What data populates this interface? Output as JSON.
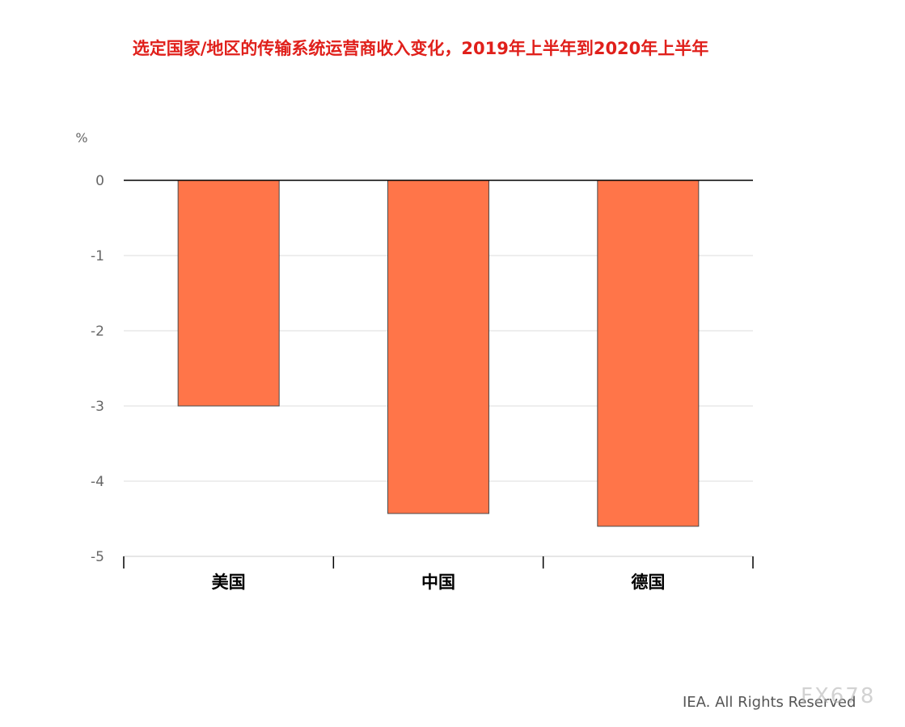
{
  "chart_data": {
    "type": "bar",
    "title": "选定国家/地区的传输系统运营商收入变化，2019年上半年到2020年上半年",
    "ylabel": "%",
    "xlabel": "",
    "categories": [
      "美国",
      "中国",
      "德国"
    ],
    "values": [
      -3.0,
      -4.43,
      -4.6
    ],
    "ylim": [
      -5,
      0
    ],
    "yticks": [
      0,
      -1,
      -2,
      -3,
      -4,
      -5
    ],
    "grid": true,
    "legend": "none",
    "colors": {
      "bar": "#ff7549",
      "bar_stroke": "#4a4a4a",
      "grid": "#dddddd",
      "zero_line": "#000000",
      "tick_text": "#666666"
    }
  },
  "footer": {
    "credit": "IEA. All Rights Reserved",
    "watermark": "FX678"
  }
}
